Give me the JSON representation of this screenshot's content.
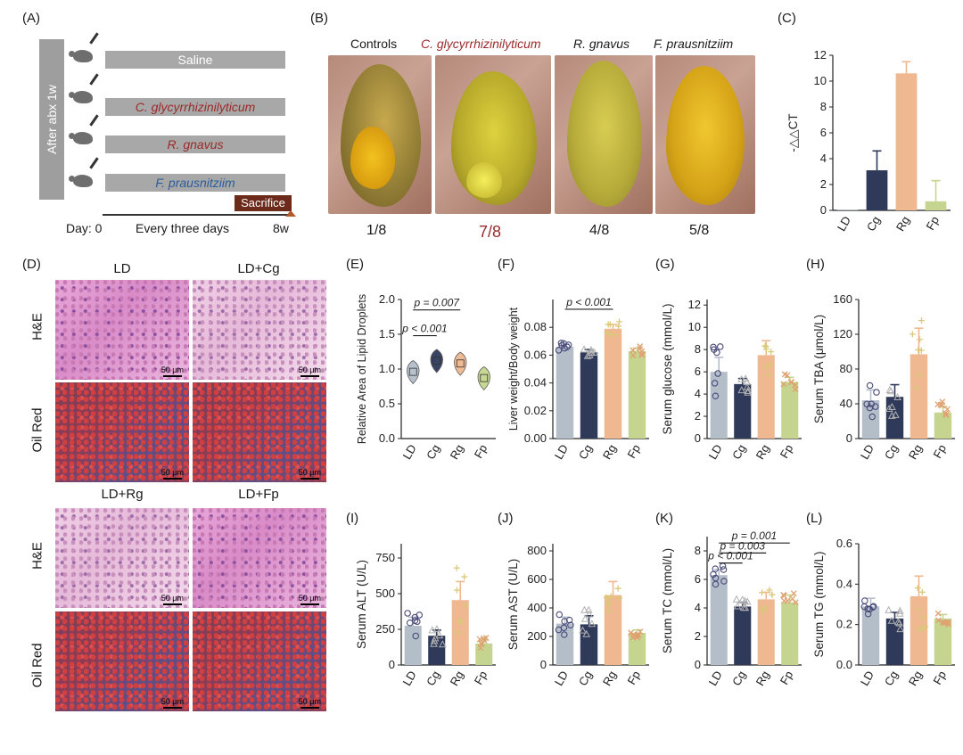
{
  "panel_labels": {
    "a": "(A)",
    "b": "(B)",
    "c": "(C)",
    "d": "(D)",
    "e": "(E)",
    "f": "(F)",
    "g": "(G)",
    "h": "(H)",
    "i": "(I)",
    "j": "(J)",
    "k": "(K)",
    "l": "(L)"
  },
  "panel_a": {
    "side_label": "After abx 1w",
    "groups": [
      "Saline",
      "C. glycyrrhizinilyticum",
      "R. gnavus",
      "F. prausnitziim"
    ],
    "group_colors": [
      "#ffffff",
      "#9b2a2a",
      "#9b2a2a",
      "#2a5c9b"
    ],
    "day_label": "Day: 0",
    "interval_label": "Every three days",
    "end_label": "8w",
    "sacrifice_label": "Sacrifice"
  },
  "panel_b": {
    "titles": [
      "Controls",
      "C. glycyrrhizinilyticum",
      "R. gnavus",
      "F. prausnitziim"
    ],
    "counts": [
      "1/8",
      "7/8",
      "4/8",
      "5/8"
    ],
    "highlight_color": "#9b2a2a"
  },
  "panel_d": {
    "top_cols": [
      "LD",
      "LD+Cg"
    ],
    "bottom_cols": [
      "LD+Rg",
      "LD+Fp"
    ],
    "rows": [
      "H&E",
      "Oil Red"
    ],
    "scale_label": "50 μm"
  },
  "colors": {
    "LD": "#b4bec9",
    "Cg": "#2f3a5a",
    "Rg": "#efb890",
    "Fp": "#c5d58f"
  },
  "chart_data": [
    {
      "id": "C",
      "type": "bar",
      "title": "",
      "ylabel": "-△△CT",
      "categories": [
        "LD",
        "Cg",
        "Rg",
        "Fp"
      ],
      "values": [
        0.05,
        3.1,
        10.6,
        0.7
      ],
      "errors": [
        0,
        1.5,
        0.9,
        1.6
      ],
      "ylim": [
        0,
        12
      ],
      "yticks": [
        0,
        2,
        4,
        6,
        8,
        10,
        12
      ],
      "annotations": []
    },
    {
      "id": "E",
      "type": "violin",
      "ylabel": "Relative Area of Lipid Droplets",
      "categories": [
        "LD",
        "Cg",
        "Rg",
        "Fp"
      ],
      "values": [
        0.96,
        1.12,
        1.08,
        0.87
      ],
      "ylim": [
        0,
        2.0
      ],
      "yticks": [
        "0.0",
        "0.5",
        "1.0",
        "1.5",
        "2.0"
      ],
      "annotations": [
        {
          "text": "p = 0.007",
          "from": 0,
          "to": 2,
          "y": 1.85
        },
        {
          "text": "p < 0.001",
          "from": 0,
          "to": 1,
          "y": 1.48
        }
      ]
    },
    {
      "id": "F",
      "type": "bar",
      "ylabel": "Liver weight/Body weight",
      "categories": [
        "LD",
        "Cg",
        "Rg",
        "Fp"
      ],
      "values": [
        0.066,
        0.062,
        0.079,
        0.063
      ],
      "errors": [
        0.002,
        0.002,
        0.003,
        0.002
      ],
      "ylim": [
        0,
        0.1
      ],
      "yticks": [
        "0.00",
        "0.02",
        "0.04",
        "0.06",
        "0.08"
      ],
      "annotations": [
        {
          "text": "p < 0.001",
          "from": 0,
          "to": 2,
          "y": 0.093
        }
      ]
    },
    {
      "id": "G",
      "type": "bar",
      "ylabel": "Serum glucose (mmol/L)",
      "categories": [
        "LD",
        "Cg",
        "Rg",
        "Fp"
      ],
      "values": [
        6.0,
        4.9,
        7.5,
        5.1
      ],
      "errors": [
        1.3,
        0.5,
        1.3,
        0.4
      ],
      "ylim": [
        0,
        12.5
      ],
      "yticks": [
        0,
        2,
        4,
        6,
        8,
        10,
        12
      ],
      "annotations": []
    },
    {
      "id": "H",
      "type": "bar",
      "ylabel": "Serum TBA (μmol/L)",
      "categories": [
        "LD",
        "Cg",
        "Rg",
        "Fp"
      ],
      "values": [
        44,
        48,
        97,
        30
      ],
      "errors": [
        12,
        14,
        30,
        7
      ],
      "ylim": [
        0,
        160
      ],
      "yticks": [
        0,
        40,
        80,
        120,
        160
      ],
      "annotations": []
    },
    {
      "id": "I",
      "type": "bar",
      "ylabel": "Serum ALT (U/L)",
      "categories": [
        "LD",
        "Cg",
        "Rg",
        "Fp"
      ],
      "values": [
        275,
        205,
        455,
        150
      ],
      "errors": [
        60,
        40,
        130,
        25
      ],
      "ylim": [
        0,
        850
      ],
      "yticks": [
        0,
        250,
        500,
        750
      ],
      "annotations": []
    },
    {
      "id": "J",
      "type": "bar",
      "ylabel": "Serum AST (U/L)",
      "categories": [
        "LD",
        "Cg",
        "Rg",
        "Fp"
      ],
      "values": [
        290,
        285,
        490,
        225
      ],
      "errors": [
        45,
        60,
        95,
        20
      ],
      "ylim": [
        0,
        850
      ],
      "yticks": [
        0,
        200,
        400,
        600,
        800
      ],
      "annotations": []
    },
    {
      "id": "K",
      "type": "bar",
      "ylabel": "Serum TC (mmol/L)",
      "categories": [
        "LD",
        "Cg",
        "Rg",
        "Fp"
      ],
      "values": [
        6.3,
        4.1,
        4.6,
        4.4
      ],
      "errors": [
        0.4,
        0.3,
        0.5,
        0.5
      ],
      "ylim": [
        0,
        9
      ],
      "yticks": [
        0,
        2,
        4,
        6,
        8
      ],
      "annotations": [
        {
          "text": "p = 0.001",
          "from": 0,
          "to": 3,
          "y": 8.55
        },
        {
          "text": "p = 0.003",
          "from": 0,
          "to": 2,
          "y": 7.85
        },
        {
          "text": "p < 0.001",
          "from": 0,
          "to": 1,
          "y": 7.15
        }
      ]
    },
    {
      "id": "L",
      "type": "bar",
      "ylabel": "Serum TG (mmol/L)",
      "categories": [
        "LD",
        "Cg",
        "Rg",
        "Fp"
      ],
      "values": [
        0.29,
        0.23,
        0.34,
        0.23
      ],
      "errors": [
        0.04,
        0.03,
        0.1,
        0.02
      ],
      "ylim": [
        0,
        0.6
      ],
      "yticks": [
        "0.0",
        "0.2",
        "0.4",
        "0.6"
      ],
      "annotations": []
    }
  ]
}
